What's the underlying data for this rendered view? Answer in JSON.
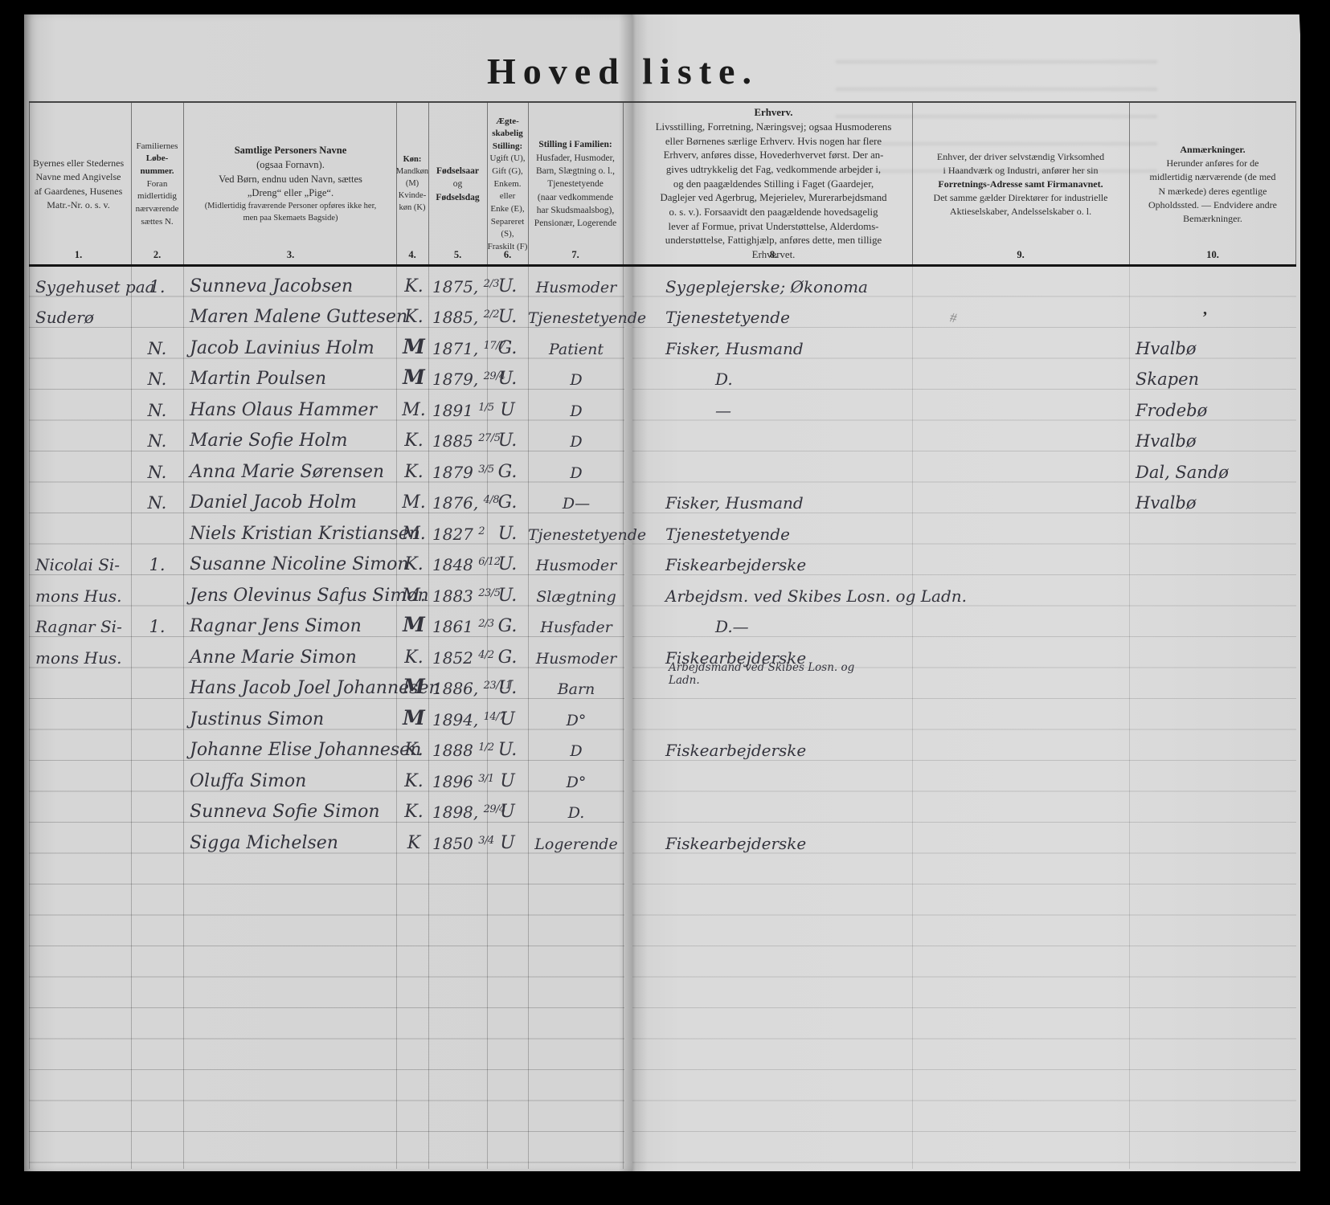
{
  "title": "Hoved liste.",
  "header": {
    "columns": [
      {
        "num": "1.",
        "lines": [
          {
            "t": "Byernes eller Stedernes"
          },
          {
            "t": "Navne med Angivelse"
          },
          {
            "t": "af Gaardenes, Husenes"
          },
          {
            "t": "Matr.-Nr. o. s. v."
          }
        ]
      },
      {
        "num": "2.",
        "lines": [
          {
            "t": "Familiernes"
          },
          {
            "t": "Løbe-",
            "b": true
          },
          {
            "t": "nummer.",
            "b": true
          },
          {
            "t": "Foran"
          },
          {
            "t": "midlertidig"
          },
          {
            "t": "nærværende"
          },
          {
            "t": "sættes N."
          }
        ]
      },
      {
        "num": "3.",
        "lines": [
          {
            "t": "Samtlige Personers Navne",
            "b": true
          },
          {
            "t": "(ogsaa Fornavn)."
          },
          {
            "t": " "
          },
          {
            "t": "Ved Børn, endnu uden Navn, sættes"
          },
          {
            "t": "„Dreng“ eller „Pige“."
          },
          {
            "t": " "
          },
          {
            "t": "(Midlertidig fraværende Personer opføres ikke her,",
            "s": true
          },
          {
            "t": "men paa Skemaets Bagside)",
            "s": true
          }
        ]
      },
      {
        "num": "4.",
        "lines": [
          {
            "t": "Køn:",
            "b": true
          },
          {
            "t": "Mandkøn"
          },
          {
            "t": "(M)"
          },
          {
            "t": "Kvinde-"
          },
          {
            "t": "køn (K)"
          }
        ]
      },
      {
        "num": "5.",
        "lines": [
          {
            "t": "Fødselsaar",
            "b": true
          },
          {
            "t": "og"
          },
          {
            "t": "Fødselsdag",
            "b": true
          }
        ]
      },
      {
        "num": "6.",
        "lines": [
          {
            "t": "Ægte-",
            "b": true
          },
          {
            "t": "skabelig",
            "b": true
          },
          {
            "t": "Stilling:",
            "b": true
          },
          {
            "t": "Ugift (U),"
          },
          {
            "t": "Gift (G),"
          },
          {
            "t": "Enkem. eller"
          },
          {
            "t": "Enke (E),"
          },
          {
            "t": "Separeret"
          },
          {
            "t": "(S),"
          },
          {
            "t": "Fraskilt (F)"
          }
        ]
      },
      {
        "num": "7.",
        "lines": [
          {
            "t": "Stilling i Familien:",
            "b": true
          },
          {
            "t": "Husfader, Husmoder,"
          },
          {
            "t": "Barn, Slægtning o. l.,"
          },
          {
            "t": "Tjenestetyende"
          },
          {
            "t": "(naar vedkommende"
          },
          {
            "t": "har Skudsmaalsbog),"
          },
          {
            "t": "Pensionær, Logerende"
          }
        ]
      },
      {
        "num": "8.",
        "lines": [
          {
            "t": "Erhverv.",
            "b": true
          },
          {
            "t": "Livsstilling, Forretning, Næringsvej; ogsaa Husmoderens"
          },
          {
            "t": "eller Børnenes særlige Erhverv.  Hvis nogen har flere"
          },
          {
            "t": "Erhverv, anføres disse, Hovederhvervet først.  Der an-"
          },
          {
            "t": "gives udtrykkelig det Fag, vedkommende arbejder i,"
          },
          {
            "t": "og den paagældendes Stilling i Faget (Gaardejer,"
          },
          {
            "t": "Daglejer ved Agerbrug, Mejerielev, Murerarbejdsmand"
          },
          {
            "t": "o. s. v.).  Forsaavidt den paagældende hovedsagelig"
          },
          {
            "t": "lever af Formue, privat Understøttelse, Alderdoms-"
          },
          {
            "t": "understøttelse, Fattighjælp, anføres dette, men tillige"
          },
          {
            "t": "Erhvervet."
          }
        ]
      },
      {
        "num": "9.",
        "lines": [
          {
            "t": "Enhver, der driver selvstændig Virksomhed"
          },
          {
            "t": "i Haandværk og Industri, anfører her sin"
          },
          {
            "t": "Forretnings-Adresse samt Firmanavnet.",
            "b": true
          },
          {
            "t": "Det samme gælder Direktører for industrielle"
          },
          {
            "t": "Aktieselskaber, Andelsselskaber o. l."
          }
        ]
      },
      {
        "num": "10.",
        "lines": [
          {
            "t": "Anmærkninger.",
            "b": true
          },
          {
            "t": "Herunder anføres for de"
          },
          {
            "t": "midlertidig nærværende (de med"
          },
          {
            "t": "N mærkede) deres egentlige"
          },
          {
            "t": "Opholdssted. — Endvidere andre"
          },
          {
            "t": "Bemærkninger."
          }
        ]
      }
    ]
  },
  "rows": [
    {
      "place": "Sygehuset paa",
      "nr": "1.",
      "name": "Sunneva Jacobsen",
      "kon": "K.",
      "by": "1875,",
      "bd": "2/3",
      "status": "U.",
      "family": "Husmoder",
      "erhverv": "Sygeplejerske; Økonoma",
      "remarks": ""
    },
    {
      "place": "Suderø",
      "nr": "",
      "name": "Maren Malene Guttesen",
      "kon": "K.",
      "by": "1885,",
      "bd": "2/2",
      "status": "U.",
      "family": "Tjenestetyende",
      "erhverv": "Tjenestetyende",
      "remarks": ""
    },
    {
      "nr": "N.",
      "name": "Jacob Lavinius Holm",
      "kon": "M",
      "by": "1871,",
      "bd": "17/7",
      "status": "G.",
      "family": "Patient",
      "erhverv": "Fisker, Husmand",
      "remarks": "Hvalbø"
    },
    {
      "nr": "N.",
      "name": "Martin Poulsen",
      "kon": "M",
      "by": "1879,",
      "bd": "29/4",
      "status": "U.",
      "family": "D",
      "erhverv": "D.",
      "remarks": "Skapen"
    },
    {
      "nr": "N.",
      "name": "Hans Olaus Hammer",
      "kon": "M.",
      "by": "1891",
      "bd": "1/5",
      "status": "U",
      "family": "D",
      "erhverv": "—",
      "remarks": "Frodebø"
    },
    {
      "nr": "N.",
      "name": "Marie Sofie Holm",
      "kon": "K.",
      "by": "1885",
      "bd": "27/5",
      "status": "U.",
      "family": "D",
      "erhverv": "",
      "remarks": "Hvalbø"
    },
    {
      "nr": "N.",
      "name": "Anna Marie Sørensen",
      "kon": "K.",
      "by": "1879",
      "bd": "3/5",
      "status": "G.",
      "family": "D",
      "erhverv": "",
      "remarks": "Dal, Sandø"
    },
    {
      "nr": "N.",
      "name": "Daniel Jacob Holm",
      "kon": "M.",
      "by": "1876,",
      "bd": "4/8",
      "status": "G.",
      "family": "D—",
      "erhverv": "Fisker, Husmand",
      "remarks": "Hvalbø"
    },
    {
      "name": "Niels Kristian Kristiansen",
      "kon": "M.",
      "by": "1827",
      "bd": "2",
      "status": "U.",
      "family": "Tjenestetyende",
      "erhverv": "Tjenestetyende",
      "remarks": ""
    },
    {
      "place": "Nicolai Si-",
      "nr": "1.",
      "name": "Susanne Nicoline Simon",
      "kon": "K.",
      "by": "1848",
      "bd": "6/12",
      "status": "U.",
      "family": "Husmoder",
      "erhverv": "Fiskearbejderske",
      "remarks": ""
    },
    {
      "place": "mons Hus.",
      "name": "Jens Olevinus Safus Simon",
      "kon": "M.",
      "by": "1883",
      "bd": "23/5",
      "status": "U.",
      "family": "Slægtning",
      "erhverv": "Arbejdsm. ved Skibes Losn. og Ladn.",
      "remarks": ""
    },
    {
      "place": "Ragnar Si-",
      "nr": "1.",
      "name": "Ragnar Jens Simon",
      "kon": "M",
      "by": "1861",
      "bd": "2/3",
      "status": "G.",
      "family": "Husfader",
      "erhverv": "D.—",
      "remarks": ""
    },
    {
      "place": "mons Hus.",
      "name": "Anne Marie Simon",
      "kon": "K.",
      "by": "1852",
      "bd": "4/2",
      "status": "G.",
      "family": "Husmoder",
      "erhverv": "Fiskearbejderske",
      "remarks": ""
    },
    {
      "name": "Hans Jacob Joel Johannesen",
      "kon": "M",
      "by": "1886,",
      "bd": "23/11",
      "status": "U.",
      "family": "Barn",
      "erhverv2": "Arbejdsmand ved Skibes Losn. og Ladn.",
      "remarks": ""
    },
    {
      "name": "Justinus Simon",
      "kon": "M",
      "by": "1894,",
      "bd": "14/7",
      "status": "U",
      "family": "D°",
      "remarks": ""
    },
    {
      "name": "Johanne Elise Johannesen",
      "kon": "K.",
      "by": "1888",
      "bd": "1/2",
      "status": "U.",
      "family": "D",
      "erhverv": "Fiskearbejderske",
      "remarks": ""
    },
    {
      "name": "Oluffa Simon",
      "kon": "K.",
      "by": "1896",
      "bd": "3/1",
      "status": "U",
      "family": "D°",
      "remarks": ""
    },
    {
      "name": "Sunneva Sofie Simon",
      "kon": "K.",
      "by": "1898,",
      "bd": "29/4",
      "status": "U",
      "family": "D.",
      "remarks": ""
    },
    {
      "name": "Sigga Michelsen",
      "kon": "K",
      "by": "1850",
      "bd": "3/4",
      "status": "U",
      "family": "Logerende",
      "erhverv": "Fiskearbejderske",
      "remarks": ""
    }
  ],
  "marks": {
    "pencil": "#",
    "tick": "’"
  }
}
